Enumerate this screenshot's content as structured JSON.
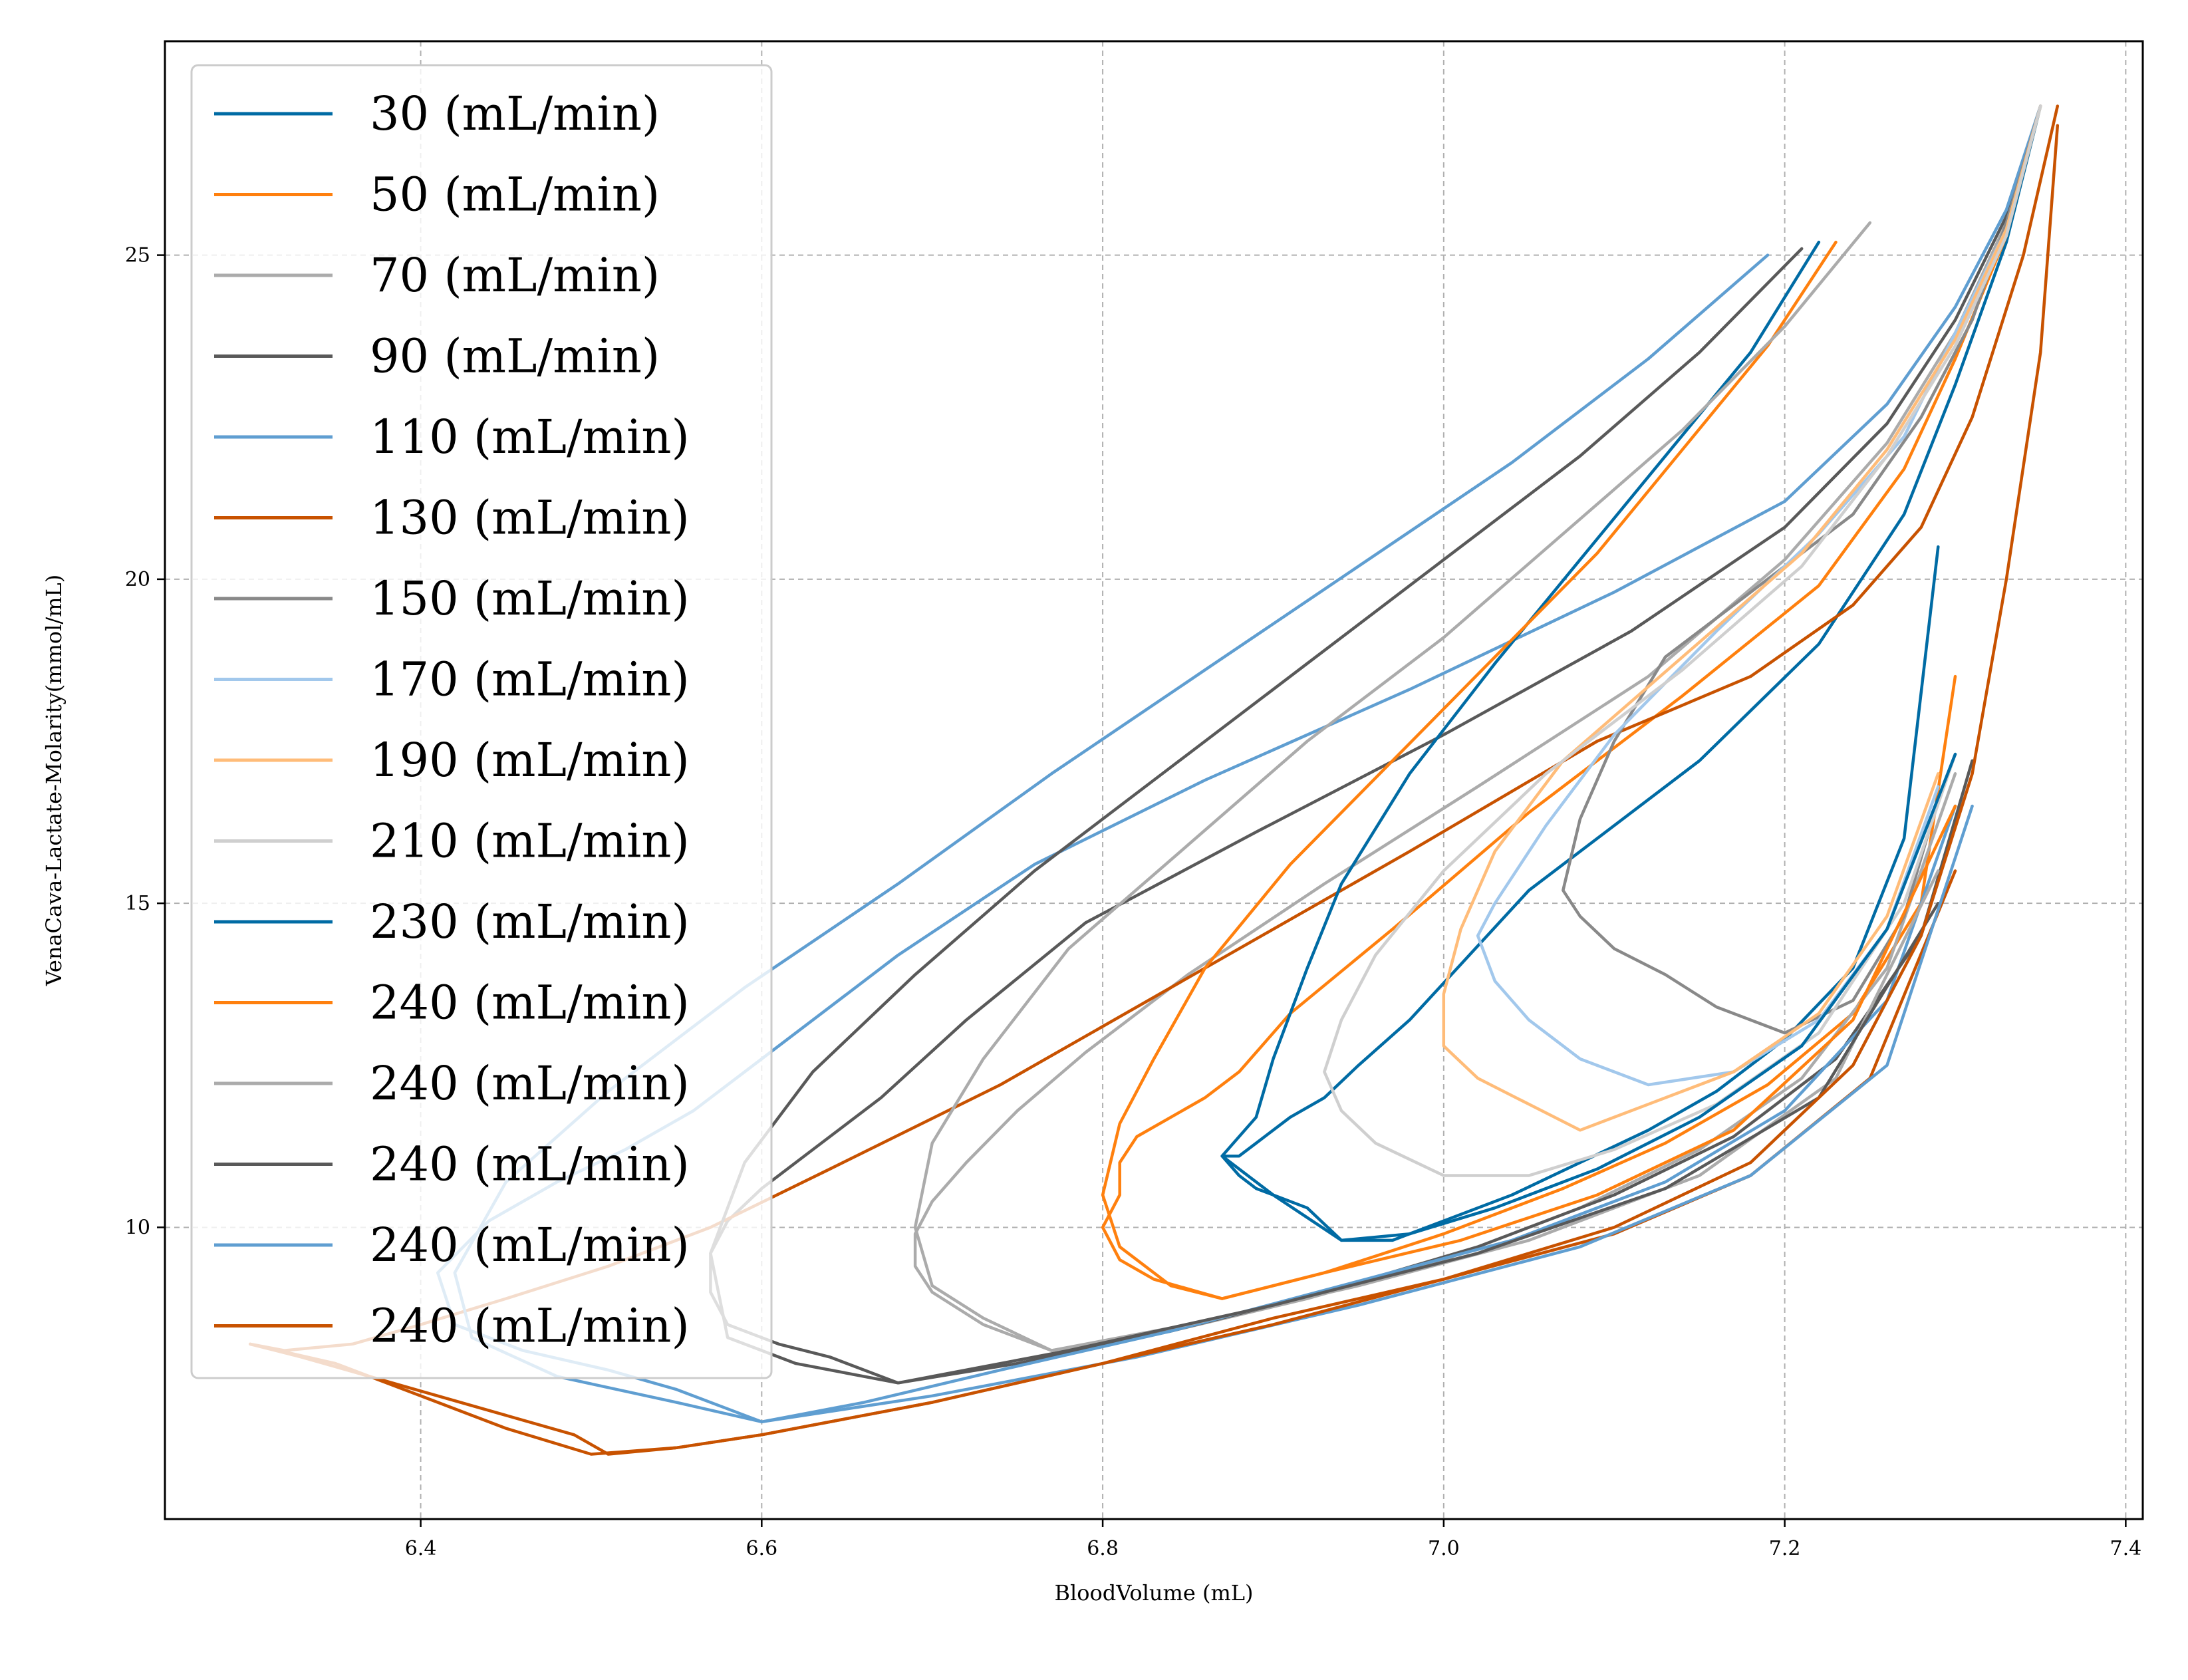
{
  "chart_data": {
    "type": "line",
    "title": "",
    "xlabel": "BloodVolume (mL)",
    "ylabel": "VenaCava-Lactate-Molarity(mmol/mL)",
    "xlim": [
      6.25,
      7.41
    ],
    "ylim": [
      5.5,
      28.3
    ],
    "xticks": [
      6.4,
      6.6,
      6.8,
      7.0,
      7.2,
      7.4
    ],
    "xtick_labels": [
      "6.4",
      "6.6",
      "6.8",
      "7.0",
      "7.2",
      "7.4"
    ],
    "yticks": [
      10,
      15,
      20,
      25
    ],
    "ytick_labels": [
      "10",
      "15",
      "20",
      "25"
    ],
    "grid": true,
    "legend_position": "upper-left",
    "series": [
      {
        "name": "30 (mL/min)",
        "color": "#006ba4",
        "x": [
          7.35,
          7.33,
          7.3,
          7.27,
          7.22,
          7.15,
          7.05,
          6.98,
          6.95,
          6.93,
          6.91,
          6.89,
          6.88,
          6.87,
          6.88,
          6.89,
          6.9,
          6.92,
          6.94,
          6.97,
          7.0,
          7.04,
          7.08,
          7.12,
          7.16,
          7.2,
          7.24,
          7.27,
          7.29
        ],
        "y": [
          27.3,
          25.2,
          23.0,
          21.0,
          19.0,
          17.2,
          15.2,
          13.2,
          12.5,
          12.0,
          11.7,
          11.3,
          11.1,
          11.1,
          10.8,
          10.6,
          10.5,
          10.3,
          9.8,
          9.8,
          10.1,
          10.5,
          11.0,
          11.5,
          12.1,
          12.9,
          14.0,
          16.0,
          20.5
        ]
      },
      {
        "name": "50 (mL/min)",
        "color": "#ff800e",
        "x": [
          7.35,
          7.33,
          7.3,
          7.27,
          7.22,
          7.14,
          7.05,
          6.97,
          6.91,
          6.88,
          6.86,
          6.84,
          6.82,
          6.81,
          6.81,
          6.8,
          6.81,
          6.83,
          6.87,
          6.93,
          7.0,
          7.07,
          7.13,
          7.19,
          7.24,
          7.28,
          7.3
        ],
        "y": [
          27.3,
          25.3,
          23.4,
          21.7,
          19.9,
          18.2,
          16.4,
          14.6,
          13.3,
          12.4,
          12.0,
          11.7,
          11.4,
          11.0,
          10.5,
          10.0,
          9.5,
          9.2,
          8.9,
          9.3,
          9.9,
          10.6,
          11.3,
          12.2,
          13.3,
          15.0,
          18.5
        ]
      },
      {
        "name": "70 (mL/min)",
        "color": "#ababab",
        "x": [
          7.35,
          7.33,
          7.3,
          7.26,
          7.2,
          7.12,
          7.02,
          6.93,
          6.85,
          6.79,
          6.75,
          6.72,
          6.7,
          6.69,
          6.69,
          6.7,
          6.73,
          6.77,
          6.84,
          6.92,
          7.0,
          7.08,
          7.15,
          7.21,
          7.26,
          7.3
        ],
        "y": [
          27.3,
          25.5,
          23.8,
          22.1,
          20.3,
          18.5,
          16.8,
          15.3,
          13.9,
          12.7,
          11.8,
          11.0,
          10.4,
          9.9,
          9.4,
          9.0,
          8.5,
          8.1,
          8.4,
          8.9,
          9.5,
          10.3,
          11.2,
          12.3,
          14.0,
          17.0
        ]
      },
      {
        "name": "90 (mL/min)",
        "color": "#595959",
        "x": [
          7.35,
          7.33,
          7.3,
          7.26,
          7.2,
          7.11,
          7.0,
          6.89,
          6.79,
          6.72,
          6.67,
          6.63,
          6.6,
          6.58,
          6.57,
          6.57,
          6.58,
          6.61,
          6.64,
          6.68,
          6.75,
          6.84,
          6.93,
          7.02,
          7.1,
          7.17,
          7.23,
          7.28,
          7.31
        ],
        "y": [
          27.3,
          25.6,
          24.0,
          22.4,
          20.8,
          19.2,
          17.6,
          16.1,
          14.7,
          13.2,
          12.0,
          11.2,
          10.6,
          10.1,
          9.6,
          9.0,
          8.5,
          8.2,
          8.0,
          7.6,
          7.9,
          8.4,
          9.0,
          9.7,
          10.5,
          11.4,
          12.6,
          14.5,
          17.2
        ]
      },
      {
        "name": "110 (mL/min)",
        "color": "#5f9ed1",
        "x": [
          7.35,
          7.33,
          7.3,
          7.26,
          7.2,
          7.1,
          6.98,
          6.86,
          6.76,
          6.68,
          6.61,
          6.56,
          6.52,
          6.48,
          6.44,
          6.41,
          6.42,
          6.46,
          6.51,
          6.55,
          6.58,
          6.6,
          6.66,
          6.74,
          6.84,
          6.94,
          7.04,
          7.13,
          7.2,
          7.26,
          7.3
        ],
        "y": [
          27.3,
          25.7,
          24.2,
          22.7,
          21.2,
          19.8,
          18.3,
          16.9,
          15.6,
          14.2,
          12.8,
          11.8,
          11.2,
          10.7,
          10.1,
          9.3,
          8.5,
          8.1,
          7.8,
          7.5,
          7.2,
          7.0,
          7.3,
          7.8,
          8.4,
          9.1,
          9.8,
          10.7,
          11.8,
          13.5,
          16.5
        ]
      },
      {
        "name": "130 (mL/min)",
        "color": "#c85200",
        "x": [
          7.36,
          7.34,
          7.31,
          7.28,
          7.24,
          7.18,
          7.09,
          6.98,
          6.86,
          6.74,
          6.64,
          6.57,
          6.51,
          6.45,
          6.4,
          6.36,
          6.32,
          6.3,
          6.35,
          6.4,
          6.45,
          6.5,
          6.55,
          6.6,
          6.7,
          6.8,
          6.9,
          7.0,
          7.1,
          7.18,
          7.25,
          7.3
        ],
        "y": [
          27.3,
          25.0,
          22.5,
          20.8,
          19.6,
          18.5,
          17.5,
          15.8,
          14.0,
          12.2,
          10.9,
          10.0,
          9.4,
          8.9,
          8.5,
          8.2,
          8.1,
          8.2,
          7.9,
          7.4,
          6.9,
          6.5,
          6.6,
          6.8,
          7.3,
          7.9,
          8.6,
          9.2,
          9.9,
          10.8,
          12.3,
          15.5
        ]
      },
      {
        "name": "150 (mL/min)",
        "color": "#898989",
        "x": [
          7.35,
          7.33,
          7.31,
          7.28,
          7.24,
          7.18,
          7.13,
          7.1,
          7.08,
          7.07,
          7.08,
          7.1,
          7.13,
          7.16,
          7.2,
          7.24,
          7.27,
          7.29
        ],
        "y": [
          27.3,
          25.5,
          24.0,
          22.5,
          21.0,
          19.8,
          18.8,
          17.5,
          16.3,
          15.2,
          14.8,
          14.3,
          13.9,
          13.4,
          13.0,
          13.5,
          14.8,
          16.6
        ]
      },
      {
        "name": "170 (mL/min)",
        "color": "#a2c8ec",
        "x": [
          7.35,
          7.33,
          7.3,
          7.27,
          7.22,
          7.16,
          7.1,
          7.06,
          7.03,
          7.02,
          7.03,
          7.05,
          7.08,
          7.12,
          7.17,
          7.22,
          7.26,
          7.29
        ],
        "y": [
          27.3,
          25.4,
          23.8,
          22.2,
          20.7,
          19.2,
          17.6,
          16.2,
          15.0,
          14.5,
          13.8,
          13.2,
          12.6,
          12.2,
          12.4,
          13.2,
          14.6,
          16.8
        ]
      },
      {
        "name": "190 (mL/min)",
        "color": "#ffbc79",
        "x": [
          7.35,
          7.33,
          7.3,
          7.26,
          7.21,
          7.14,
          7.07,
          7.03,
          7.01,
          7.0,
          7.0,
          7.02,
          7.05,
          7.08,
          7.12,
          7.17,
          7.22,
          7.26,
          7.29
        ],
        "y": [
          27.3,
          25.4,
          23.7,
          22.0,
          20.4,
          18.8,
          17.2,
          15.8,
          14.6,
          13.6,
          12.8,
          12.3,
          11.9,
          11.5,
          11.9,
          12.4,
          13.3,
          14.8,
          17.0
        ]
      },
      {
        "name": "210 (mL/min)",
        "color": "#cfcfcf",
        "x": [
          7.35,
          7.33,
          7.3,
          7.26,
          7.21,
          7.14,
          7.06,
          7.0,
          6.96,
          6.94,
          6.93,
          6.94,
          6.96,
          7.0,
          7.05,
          7.1,
          7.16,
          7.22,
          7.27,
          7.3
        ],
        "y": [
          27.3,
          25.3,
          23.6,
          21.9,
          20.2,
          18.6,
          17.0,
          15.5,
          14.2,
          13.2,
          12.4,
          11.8,
          11.3,
          10.8,
          10.8,
          11.2,
          11.9,
          13.0,
          15.0,
          17.3
        ]
      },
      {
        "name": "230 (mL/min)",
        "color": "#006ba4",
        "x": [
          7.22,
          7.18,
          7.13,
          7.08,
          7.03,
          6.98,
          6.94,
          6.92,
          6.9,
          6.89,
          6.87,
          6.9,
          6.94,
          6.98,
          7.03,
          7.09,
          7.15,
          7.21,
          7.26,
          7.3
        ],
        "y": [
          25.2,
          23.5,
          21.9,
          20.3,
          18.7,
          17.0,
          15.3,
          14.0,
          12.6,
          11.7,
          11.1,
          10.5,
          9.8,
          9.9,
          10.3,
          10.9,
          11.7,
          12.8,
          14.6,
          17.3
        ]
      },
      {
        "name": "240 (mL/min)",
        "color": "#ff800e",
        "x": [
          7.23,
          7.19,
          7.14,
          7.09,
          7.03,
          6.97,
          6.91,
          6.86,
          6.83,
          6.81,
          6.8,
          6.81,
          6.84,
          6.87,
          6.93,
          7.01,
          7.09,
          7.17,
          7.24,
          7.3
        ],
        "y": [
          25.2,
          23.6,
          22.0,
          20.4,
          18.8,
          17.2,
          15.6,
          14.0,
          12.6,
          11.6,
          10.5,
          9.7,
          9.1,
          8.9,
          9.3,
          9.8,
          10.5,
          11.5,
          13.2,
          16.5
        ]
      },
      {
        "name": "240 (mL/min)",
        "color": "#ababab",
        "x": [
          7.25,
          7.2,
          7.14,
          7.07,
          7.0,
          6.92,
          6.85,
          6.78,
          6.73,
          6.7,
          6.69,
          6.7,
          6.73,
          6.77,
          6.85,
          6.95,
          7.05,
          7.15,
          7.23,
          7.29
        ],
        "y": [
          25.5,
          23.9,
          22.3,
          20.7,
          19.1,
          17.5,
          15.9,
          14.3,
          12.6,
          11.3,
          10.0,
          9.1,
          8.6,
          8.1,
          8.5,
          9.1,
          9.8,
          10.8,
          12.3,
          15.5
        ]
      },
      {
        "name": "240 (mL/min)",
        "color": "#595959",
        "x": [
          7.21,
          7.15,
          7.08,
          7.0,
          6.92,
          6.84,
          6.76,
          6.69,
          6.63,
          6.59,
          6.57,
          6.58,
          6.62,
          6.68,
          6.78,
          6.9,
          7.02,
          7.13,
          7.22,
          7.29
        ],
        "y": [
          25.1,
          23.5,
          21.9,
          20.3,
          18.7,
          17.1,
          15.5,
          13.9,
          12.4,
          11.0,
          9.6,
          8.3,
          7.9,
          7.6,
          8.1,
          8.8,
          9.6,
          10.6,
          12.0,
          15.0
        ]
      },
      {
        "name": "240 (mL/min)",
        "color": "#5f9ed1",
        "x": [
          7.19,
          7.12,
          7.04,
          6.95,
          6.86,
          6.77,
          6.68,
          6.59,
          6.51,
          6.45,
          6.42,
          6.43,
          6.48,
          6.55,
          6.6,
          6.7,
          6.82,
          6.95,
          7.08,
          7.18,
          7.26,
          7.31
        ],
        "y": [
          25.0,
          23.4,
          21.8,
          20.2,
          18.6,
          17.0,
          15.3,
          13.7,
          12.1,
          10.7,
          9.3,
          8.3,
          7.7,
          7.3,
          7.0,
          7.4,
          8.0,
          8.8,
          9.7,
          10.8,
          12.5,
          16.5
        ]
      },
      {
        "name": "240 (mL/min)",
        "color": "#c85200",
        "x": [
          6.3,
          6.33,
          6.37,
          6.41,
          6.45,
          6.49,
          6.51,
          6.55,
          6.6,
          6.7,
          6.8,
          6.9,
          7.0,
          7.1,
          7.18,
          7.24,
          7.28,
          7.31,
          7.33,
          7.35,
          7.36
        ],
        "y": [
          8.2,
          8.0,
          7.7,
          7.4,
          7.1,
          6.8,
          6.5,
          6.6,
          6.8,
          7.3,
          7.9,
          8.5,
          9.2,
          10.0,
          11.0,
          12.5,
          14.5,
          17.0,
          20.0,
          23.5,
          27.0
        ]
      }
    ]
  }
}
